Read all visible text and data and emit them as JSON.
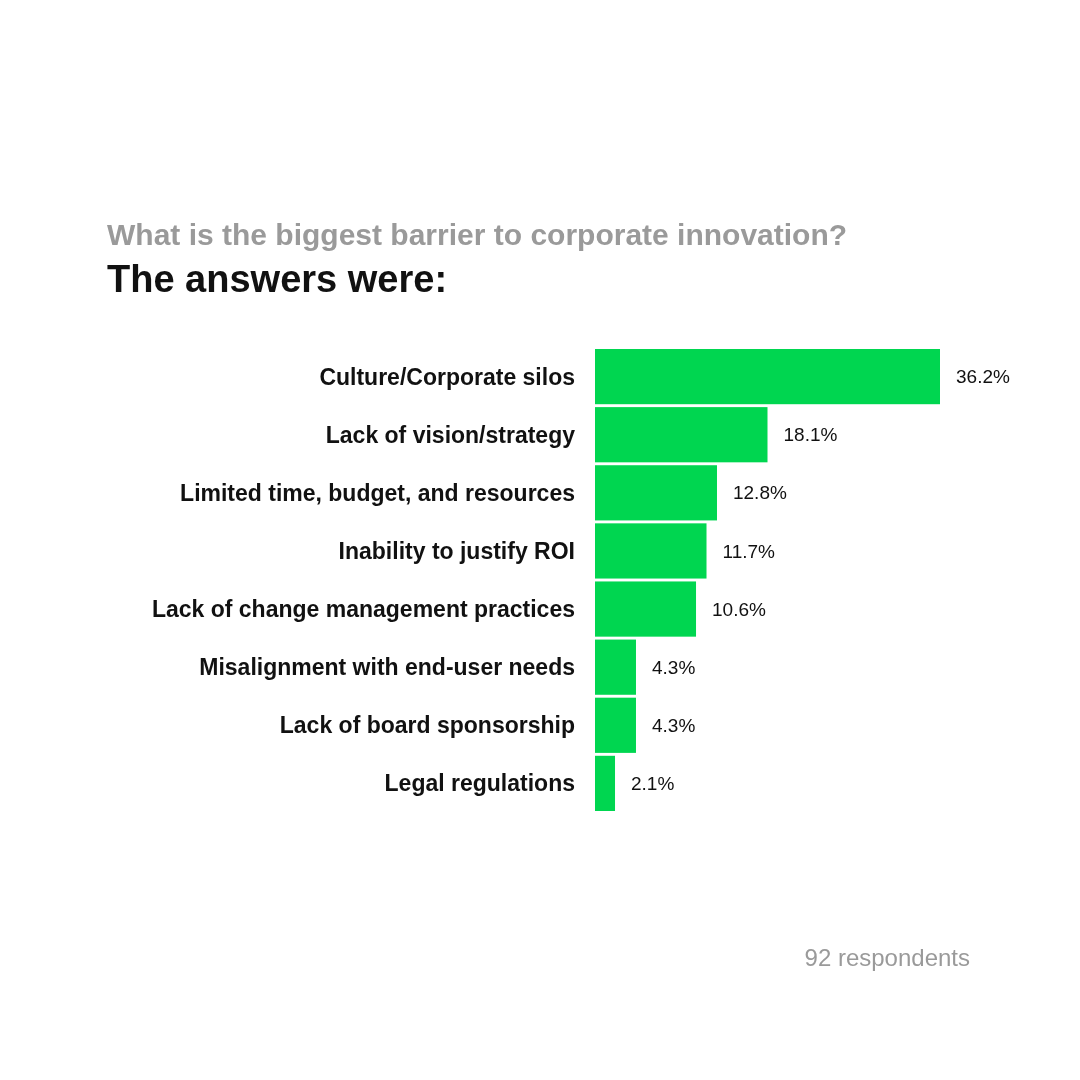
{
  "chart_data": {
    "type": "bar",
    "orientation": "horizontal",
    "title": "What is the biggest barrier to corporate innovation?",
    "subtitle": "The answers were:",
    "categories": [
      "Culture/Corporate silos",
      "Lack of vision/strategy",
      "Limited time, budget, and resources",
      "Inability to justify ROI",
      "Lack of change management practices",
      "Misalignment with end-user needs",
      "Lack of board sponsorship",
      "Legal regulations"
    ],
    "values": [
      36.2,
      18.1,
      12.8,
      11.7,
      10.6,
      4.3,
      4.3,
      2.1
    ],
    "value_labels": [
      "36.2%",
      "18.1%",
      "12.8%",
      "11.7%",
      "10.6%",
      "4.3%",
      "4.3%",
      "2.1%"
    ],
    "color": "#00d650",
    "annotations": [
      "92 respondents"
    ]
  }
}
